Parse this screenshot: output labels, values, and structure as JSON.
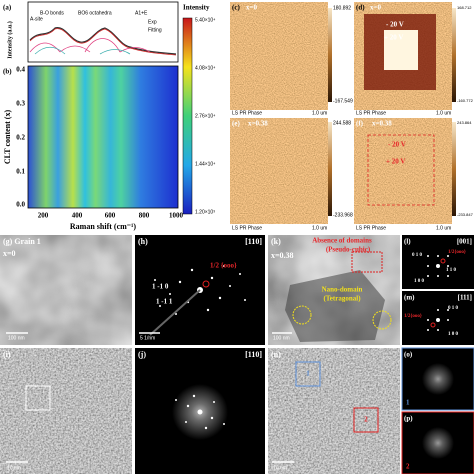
{
  "panel_a": {
    "label": "(a)",
    "ylabel": "Intensity (a.u.)",
    "site": "A-site",
    "bo": "B-O bonds",
    "oct": "BO6 octahedra",
    "a1e": "A1+E",
    "exp": "Exp",
    "fit": "Fitting"
  },
  "panel_b": {
    "label": "(b)",
    "ylabel": "CLT content (x)",
    "xlabel": "Raman shift (cm⁻¹)",
    "xticks": [
      "200",
      "400",
      "600",
      "800",
      "1000"
    ],
    "yticks": [
      "0.4",
      "0.3",
      "0.2",
      "0.1",
      "0.0"
    ]
  },
  "colorbar": {
    "title": "Intensity",
    "ticks": [
      "5.40×10⁴",
      "4.08×10⁴",
      "2.76×10⁴",
      "1.44×10⁴",
      "1.20×10³"
    ]
  },
  "afm": [
    {
      "label": "(c)",
      "comp": "x=0",
      "max": "180.892",
      "min": "-167.549",
      "footer": "LS PR Phase",
      "scale": "1.0 um"
    },
    {
      "label": "(d)",
      "comp": "x=0",
      "neg": "- 20 V",
      "pos": "+ 20 V",
      "max": "168.712",
      "min": "-160.772",
      "footer": "LS PR Phase",
      "scale": "1.0 um"
    },
    {
      "label": "(e)",
      "comp": "x=0.38",
      "max": "244.588",
      "min": "-233.968",
      "footer": "LS PR Phase",
      "scale": "1.0 um"
    },
    {
      "label": "(f)",
      "comp": "x=0.38",
      "neg": "- 20 V",
      "pos": "+ 20 V",
      "max": "243.864",
      "min": "-233.847",
      "footer": "LS PR Phase",
      "scale": "1.0 um"
    }
  ],
  "tem": {
    "g": {
      "label": "(g) Grain 1",
      "comp": "x=0",
      "scale": "100 nm"
    },
    "h": {
      "label": "(h)",
      "zone": "[110]",
      "half": "1/2 {ooo}",
      "i1": "1 -1 0",
      "i2": "1 -1 1",
      "scale": "5 1/nm"
    },
    "k": {
      "label": "(k)",
      "comp": "x=0.38",
      "absence": "Absence of domains",
      "pc": "(Pseudo-cubic)",
      "nano": "Nano-domain",
      "tet": "(Tetragonal)",
      "scale": "100 nm"
    },
    "l": {
      "label": "(l)",
      "zone": "[001]",
      "half": "1/2{ooo}",
      "i1": "0 1 0",
      "i2": "1 1 0",
      "i3": "1 0 0"
    },
    "m": {
      "label": "(m)",
      "zone": "[111]",
      "half": "1/2{ooo}",
      "i1": "0 1 0",
      "i2": "1 0 0"
    },
    "i": {
      "label": "(i)",
      "scale": "10 nm"
    },
    "j": {
      "label": "(j)",
      "zone": "[110]"
    },
    "n": {
      "label": "(n)",
      "r1": "1",
      "r2": "2",
      "scale": "10 nm"
    },
    "o": {
      "label": "(o)",
      "n": "1"
    },
    "p": {
      "label": "(p)",
      "n": "2"
    }
  }
}
